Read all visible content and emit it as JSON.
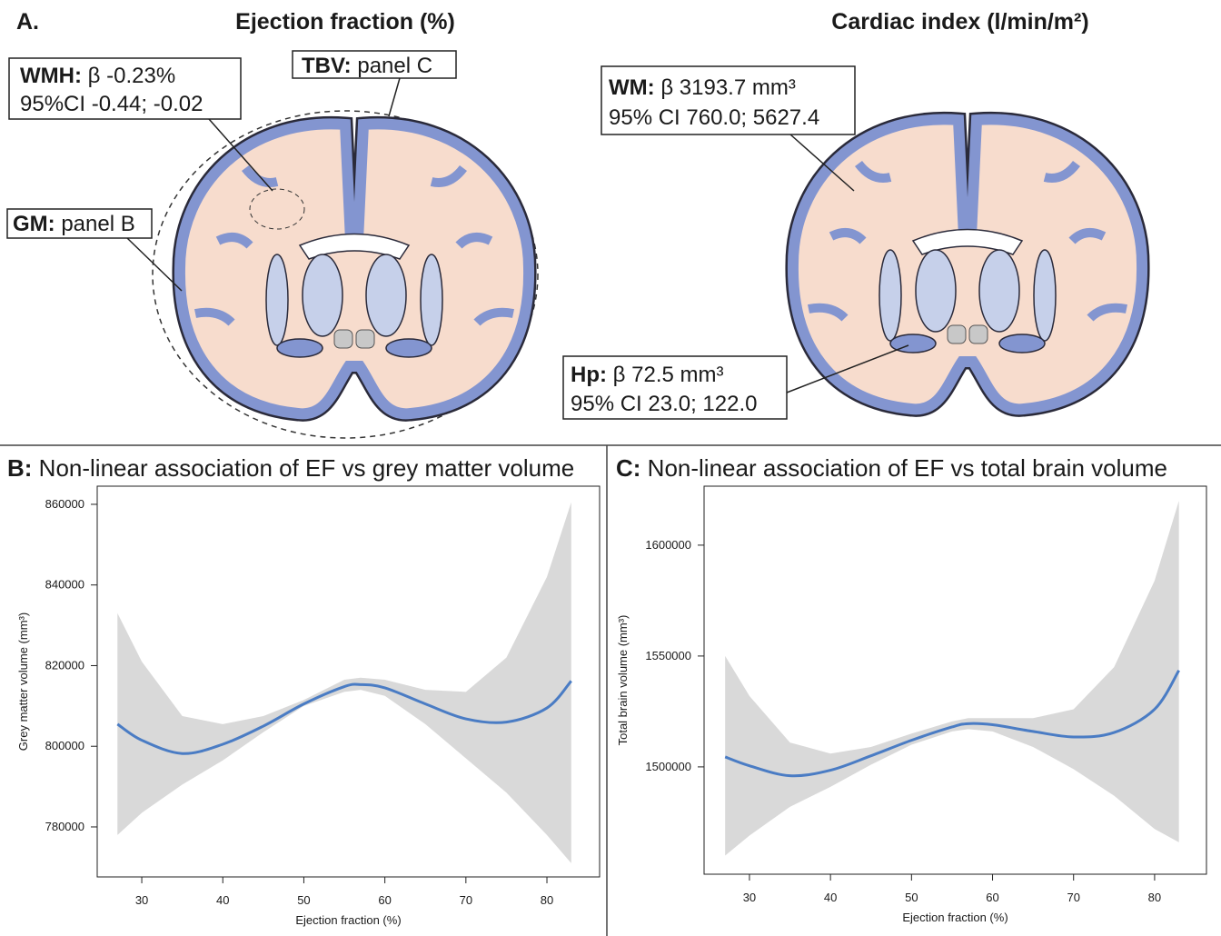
{
  "panel_a": {
    "label": "A.",
    "left_title": "Ejection fraction (%)",
    "right_title": "Cardiac index (l/min/m²)",
    "wmh": {
      "label": "WMH:",
      "line1": "β -0.23%",
      "line2": "95%CI -0.44; -0.02"
    },
    "tbv": {
      "label": "TBV:",
      "line1": "panel C"
    },
    "gm": {
      "label": "GM:",
      "line1": "panel B"
    },
    "wm": {
      "label": "WM:",
      "line1": "β 3193.7 mm³",
      "line2": "95% CI 760.0; 5627.4"
    },
    "hp": {
      "label": "Hp:",
      "line1": "β 72.5 mm³",
      "line2": "95% CI 23.0; 122.0"
    }
  },
  "chart_data": [
    {
      "type": "line",
      "panel_label": "B:",
      "title": "Non-linear association of EF vs grey matter volume",
      "x_label": "Ejection fraction (%)",
      "y_label": "Grey matter volume (mm³)",
      "x": [
        27,
        30,
        35,
        40,
        45,
        50,
        55,
        57,
        60,
        65,
        70,
        75,
        80,
        83
      ],
      "values": [
        805500,
        801500,
        798200,
        800500,
        805000,
        810500,
        814800,
        815300,
        814500,
        810500,
        806800,
        806000,
        809500,
        816200
      ],
      "lower": [
        778000,
        783500,
        790500,
        796500,
        803500,
        810000,
        813500,
        814000,
        812500,
        805500,
        797000,
        788500,
        778000,
        771000
      ],
      "upper": [
        833000,
        821000,
        807500,
        805500,
        807500,
        811500,
        816500,
        817000,
        816500,
        814000,
        813500,
        822000,
        842000,
        860500
      ],
      "color": "#4a7cc4",
      "band_color": "#d9d9d9",
      "xlim": [
        24.5,
        86.5
      ],
      "xticks": [
        30,
        40,
        50,
        60,
        70,
        80
      ],
      "ylim": [
        767600,
        864500
      ],
      "yticks": [
        780000,
        800000,
        820000,
        840000,
        860000
      ]
    },
    {
      "type": "line",
      "panel_label": "C:",
      "title": "Non-linear association of EF vs total brain volume",
      "x_label": "Ejection fraction (%)",
      "y_label": "Total brain volume (mm³)",
      "x": [
        27,
        30,
        35,
        40,
        45,
        50,
        55,
        57,
        60,
        65,
        70,
        75,
        80,
        83
      ],
      "values": [
        1504500,
        1500500,
        1496000,
        1498500,
        1505000,
        1512000,
        1518000,
        1519500,
        1519000,
        1516000,
        1513500,
        1515500,
        1526000,
        1543500
      ],
      "lower": [
        1460000,
        1469000,
        1482000,
        1491000,
        1501000,
        1510000,
        1516000,
        1517000,
        1516000,
        1509000,
        1499000,
        1487000,
        1472000,
        1466000
      ],
      "upper": [
        1550000,
        1532000,
        1511000,
        1506000,
        1509000,
        1515000,
        1520500,
        1522000,
        1522000,
        1522000,
        1526000,
        1545000,
        1584000,
        1620000
      ],
      "color": "#4a7cc4",
      "band_color": "#d9d9d9",
      "xlim": [
        24.4,
        86.4
      ],
      "xticks": [
        30,
        40,
        50,
        60,
        70,
        80
      ],
      "ylim": [
        1451600,
        1626600
      ],
      "yticks": [
        1500000,
        1550000,
        1600000
      ]
    }
  ]
}
